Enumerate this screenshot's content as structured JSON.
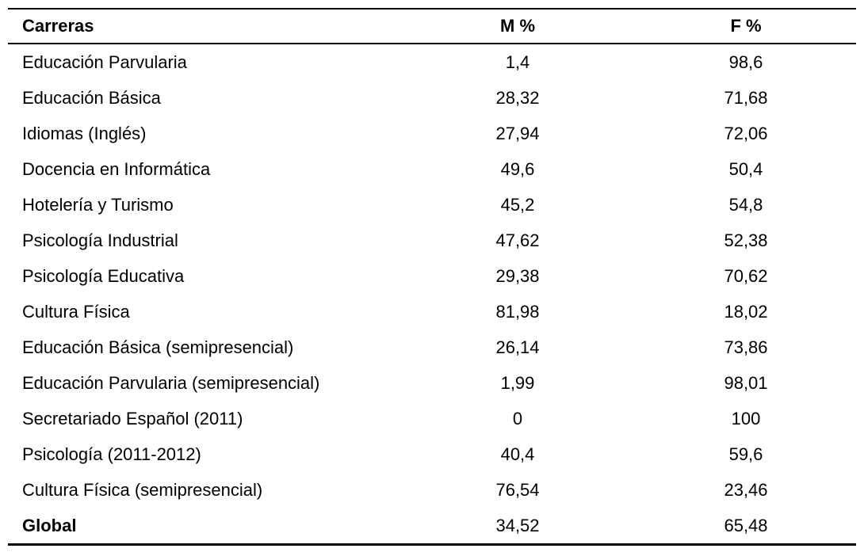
{
  "table": {
    "headers": [
      "Carreras",
      "M %",
      "F %"
    ],
    "rows": [
      {
        "carrera": "Educación Parvularia",
        "m": "1,4",
        "f": "98,6"
      },
      {
        "carrera": "Educación Básica",
        "m": "28,32",
        "f": "71,68"
      },
      {
        "carrera": "Idiomas (Inglés)",
        "m": "27,94",
        "f": "72,06"
      },
      {
        "carrera": "Docencia en Informática",
        "m": "49,6",
        "f": "50,4"
      },
      {
        "carrera": "Hotelería y Turismo",
        "m": "45,2",
        "f": "54,8"
      },
      {
        "carrera": "Psicología Industrial",
        "m": "47,62",
        "f": "52,38"
      },
      {
        "carrera": "Psicología Educativa",
        "m": "29,38",
        "f": "70,62"
      },
      {
        "carrera": "Cultura Física",
        "m": "81,98",
        "f": "18,02"
      },
      {
        "carrera": "Educación Básica (semipresencial)",
        "m": "26,14",
        "f": "73,86"
      },
      {
        "carrera": "Educación Parvularia (semipresencial)",
        "m": "1,99",
        "f": "98,01"
      },
      {
        "carrera": "Secretariado Español (2011)",
        "m": "0",
        "f": "100"
      },
      {
        "carrera": "Psicología (2011-2012)",
        "m": "40,4",
        "f": "59,6"
      },
      {
        "carrera": "Cultura Física (semipresencial)",
        "m": "76,54",
        "f": "23,46"
      },
      {
        "carrera": "Global",
        "m": "34,52",
        "f": "65,48",
        "emphasis": true
      }
    ],
    "colors": {
      "text": "#000000",
      "background": "#ffffff",
      "rule": "#000000"
    }
  }
}
